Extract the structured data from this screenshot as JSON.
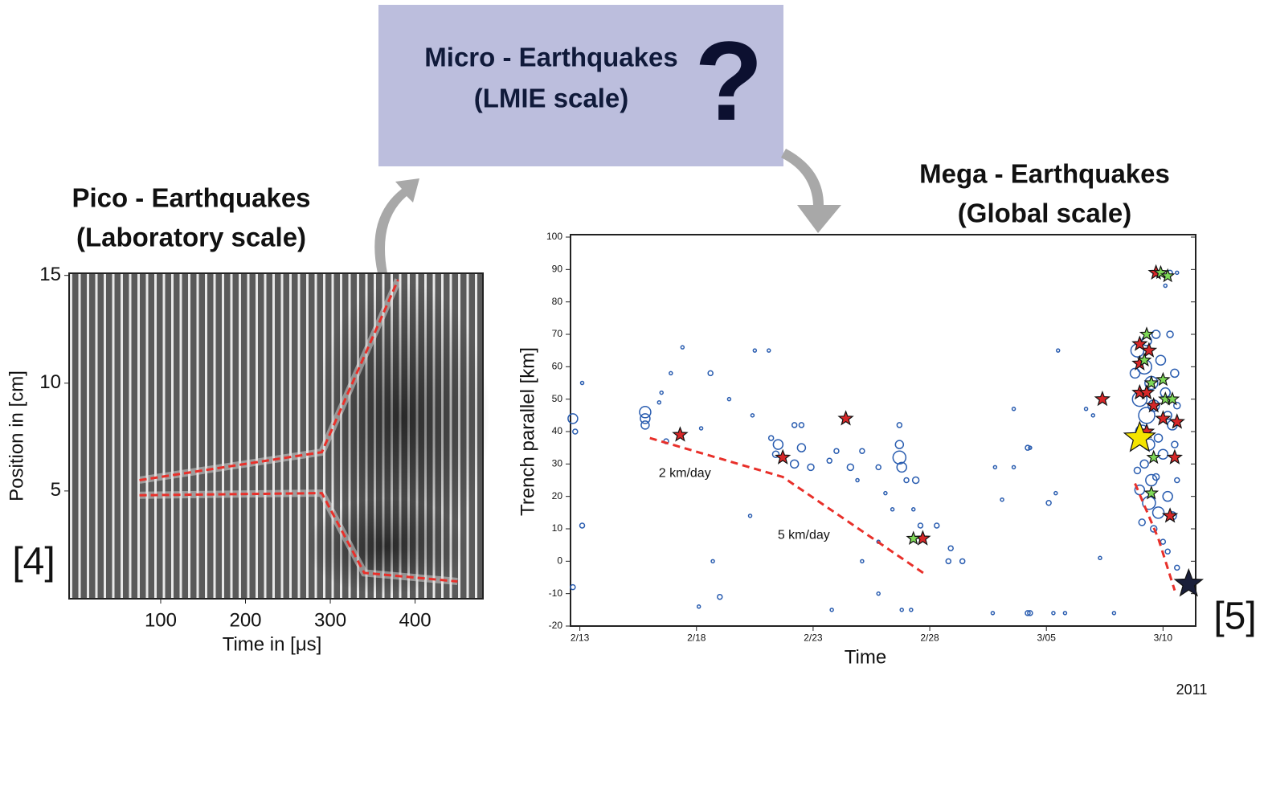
{
  "micro_box": {
    "line1": "Micro - Earthquakes",
    "line2": "(LMIE scale)",
    "mark": "?"
  },
  "pico_title": [
    "Pico - Earthquakes",
    "(Laboratory scale)"
  ],
  "mega_title": [
    "Mega - Earthquakes",
    "(Global scale)"
  ],
  "citations": [
    "[4]",
    "[5]"
  ],
  "chart_data": [
    {
      "type": "line",
      "xlabel": "Time in [μs]",
      "ylabel": "Position in [cm]",
      "xlim": [
        -8,
        480
      ],
      "ylim": [
        0,
        15.1
      ],
      "xticks": [
        100,
        200,
        300,
        400
      ],
      "yticks": [
        5,
        10,
        15
      ],
      "series": [
        {
          "color": "#e8302a",
          "x": [
            75,
            290,
            380
          ],
          "values": [
            5.5,
            6.8,
            14.8
          ]
        },
        {
          "color": "#e8302a",
          "x": [
            75,
            290,
            340,
            450
          ],
          "values": [
            4.8,
            4.9,
            1.2,
            0.8
          ]
        }
      ]
    },
    {
      "type": "scatter",
      "xlabel": "Time",
      "ylabel": "Trench parallel [km]",
      "year": "2011",
      "xlim": [
        -0.4,
        26.4
      ],
      "ylim": [
        -20,
        100
      ],
      "xticks": [
        {
          "value": 0,
          "label": "2/13"
        },
        {
          "value": 5,
          "label": "2/18"
        },
        {
          "value": 10,
          "label": "2/23"
        },
        {
          "value": 15,
          "label": "2/28"
        },
        {
          "value": 20,
          "label": "3/05"
        },
        {
          "value": 25,
          "label": "3/10"
        }
      ],
      "yticks": [
        -20,
        -10,
        0,
        10,
        20,
        30,
        40,
        50,
        60,
        70,
        80,
        90,
        100
      ],
      "series": [
        {
          "marker": "circle",
          "color": "#2a5db0",
          "x": [
            -0.3,
            -0.2,
            0.1,
            -0.3,
            0.1,
            2.8,
            2.8,
            2.8,
            3.4,
            3.5,
            3.9,
            4.4,
            3.7,
            5.2,
            5.6,
            6.4,
            7.5,
            8.1,
            7.4,
            8.5,
            8.4,
            9.2,
            9.5,
            9.5,
            8.2,
            9.2,
            9.9,
            10.7,
            11,
            11.6,
            12.1,
            11.9,
            12.8,
            13.7,
            13.7,
            13.7,
            13.8,
            14,
            14.4,
            13.1,
            13.4,
            14.3,
            15.3,
            15.9,
            15.8,
            16.4,
            12.8,
            12.1,
            5.7,
            7.3,
            6,
            5.1,
            10.8,
            12.8,
            13.8,
            14.2,
            18.6,
            17.8,
            19.2,
            19.3,
            20.1,
            20.4,
            20.5,
            18.6,
            21.7,
            22,
            22.3,
            18.1,
            19.3,
            17.7,
            19.2,
            20.3,
            20.8,
            22.9,
            14.6,
            23.9,
            24.2,
            24.5,
            24,
            24.3,
            24.6,
            24.1,
            24.4,
            23.8,
            24.9,
            25.1,
            25.2,
            25.4,
            24.8,
            25,
            24.2,
            24.5,
            24,
            24.4,
            24.8,
            25.2,
            25.4,
            24.6,
            25,
            25.2,
            24.3,
            24.7,
            25.3,
            25.5,
            25.6,
            25.5,
            25.6,
            25.3,
            25.6,
            25.6,
            24.7,
            23.9,
            24.1,
            25.1
          ],
          "values": [
            44,
            40,
            11,
            -8,
            55,
            46,
            44,
            42,
            49,
            52,
            58,
            66,
            37,
            41,
            58,
            50,
            65,
            65,
            45,
            36,
            33,
            42,
            42,
            35,
            38,
            30,
            29,
            31,
            34,
            29,
            34,
            25,
            29,
            42,
            36,
            32,
            29,
            25,
            25,
            21,
            16,
            16,
            11,
            4,
            0,
            0,
            6,
            0,
            0,
            14,
            -11,
            -14,
            -15,
            -10,
            -15,
            -15,
            29,
            29,
            35,
            35,
            18,
            21,
            65,
            47,
            47,
            45,
            1,
            19,
            -16,
            -16,
            -16,
            -16,
            -16,
            -16,
            11,
            65,
            60,
            55,
            50,
            45,
            48,
            40,
            36,
            58,
            62,
            52,
            45,
            42,
            38,
            33,
            30,
            25,
            22,
            18,
            15,
            20,
            14,
            10,
            6,
            3,
            68,
            70,
            70,
            58,
            48,
            36,
            25,
            89,
            89,
            -2,
            26,
            28,
            12,
            85
          ],
          "sizes": [
            6,
            3,
            3,
            3,
            2,
            7,
            6,
            5,
            2,
            2,
            2,
            2,
            3,
            2,
            3,
            2,
            2,
            2,
            2,
            6,
            4,
            3,
            3,
            5,
            3,
            5,
            4,
            3,
            3,
            4,
            3,
            2,
            3,
            3,
            5,
            8,
            6,
            3,
            4,
            2,
            2,
            2,
            3,
            3,
            3,
            3,
            2,
            2,
            2,
            2,
            3,
            2,
            2,
            2,
            2,
            2,
            2,
            2,
            3,
            2,
            3,
            2,
            2,
            2,
            2,
            2,
            2,
            2,
            3,
            2,
            3,
            2,
            2,
            2,
            3,
            8,
            9,
            8,
            9,
            10,
            7,
            8,
            7,
            6,
            6,
            6,
            5,
            6,
            5,
            6,
            5,
            7,
            6,
            8,
            7,
            6,
            5,
            4,
            3,
            3,
            6,
            5,
            4,
            5,
            4,
            4,
            3,
            3,
            2,
            3,
            4,
            4,
            4,
            2
          ]
        },
        {
          "marker": "star",
          "color": "#d62728",
          "size": 9,
          "x": [
            4.3,
            8.7,
            11.4,
            14.7,
            22.4,
            24.7,
            24,
            24.4,
            24,
            24.3,
            24.6,
            25,
            25.6,
            25.3,
            25.5,
            24,
            24.3
          ],
          "values": [
            39,
            32,
            44,
            7,
            50,
            89,
            61,
            65,
            52,
            52,
            48,
            44,
            43,
            14,
            32,
            67,
            40
          ]
        },
        {
          "marker": "star",
          "color": "#7ed957",
          "size": 8,
          "x": [
            14.3,
            24.9,
            25.2,
            24.2,
            24.5,
            25,
            24.6,
            25.1,
            25.4,
            24.5,
            24.3
          ],
          "values": [
            7,
            89,
            88,
            62,
            55,
            56,
            32,
            50,
            50,
            21,
            70
          ]
        },
        {
          "marker": "star",
          "color": "#f5e400",
          "size": 20,
          "x": [
            24
          ],
          "values": [
            38
          ]
        },
        {
          "marker": "star",
          "color": "#1a1f3a",
          "size": 18,
          "x": [
            26.1
          ],
          "values": [
            -7
          ]
        }
      ],
      "lines": [
        {
          "color": "#e8302a",
          "x": [
            3,
            8.7,
            14.8
          ],
          "values": [
            38,
            26,
            -4
          ]
        },
        {
          "color": "#e8302a",
          "x": [
            23.8,
            24.8,
            25.5
          ],
          "values": [
            24,
            7,
            -9
          ]
        }
      ],
      "annotations": [
        {
          "text": "2 km/day",
          "x": 4.5,
          "y": 27
        },
        {
          "text": "5 km/day",
          "x": 9.6,
          "y": 8
        }
      ]
    }
  ]
}
